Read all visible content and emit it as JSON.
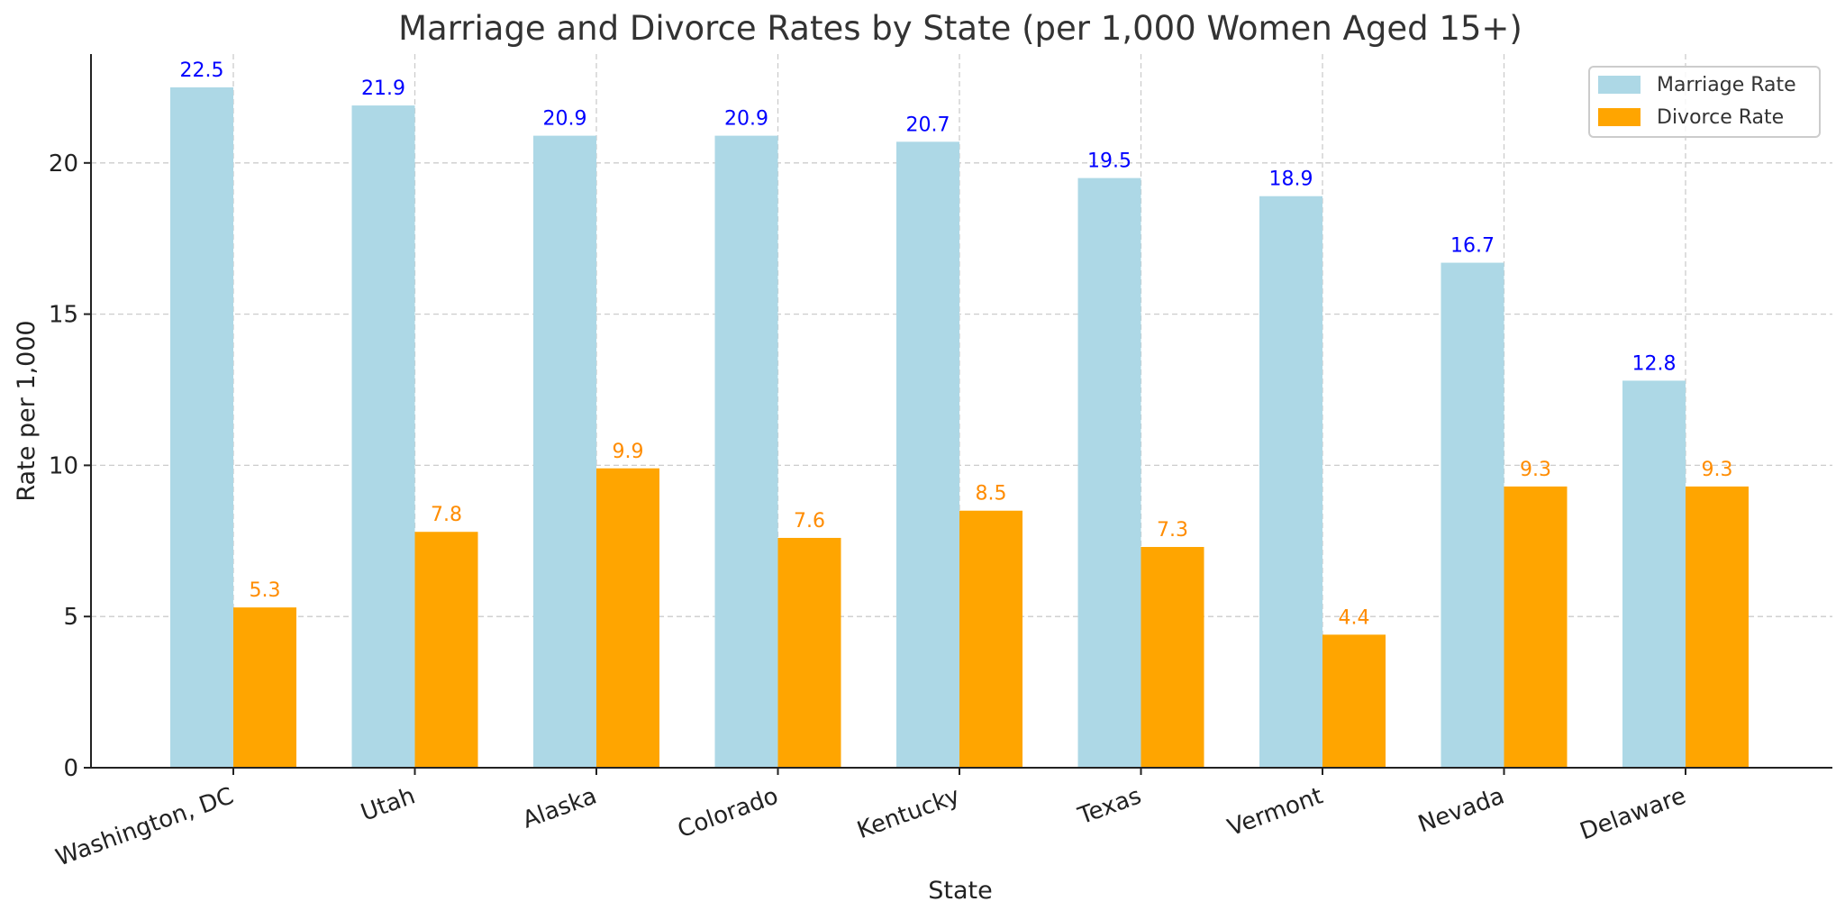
{
  "chart_data": {
    "type": "bar",
    "title": "Marriage and Divorce Rates by State (per 1,000 Women Aged 15+)",
    "xlabel": "State",
    "ylabel": "Rate per 1,000",
    "ylim": [
      0,
      23.6
    ],
    "yticks": [
      0,
      5,
      10,
      15,
      20
    ],
    "grid": true,
    "legend_position": "top-right",
    "categories": [
      "Washington, DC",
      "Utah",
      "Alaska",
      "Colorado",
      "Kentucky",
      "Texas",
      "Vermont",
      "Nevada",
      "Delaware"
    ],
    "series": [
      {
        "name": "Marriage Rate",
        "color": "#add8e6",
        "label_color": "#0000ff",
        "values": [
          22.5,
          21.9,
          20.9,
          20.9,
          20.7,
          19.5,
          18.9,
          16.7,
          12.8
        ]
      },
      {
        "name": "Divorce Rate",
        "color": "#ffa500",
        "label_color": "#ff8c00",
        "values": [
          5.3,
          7.8,
          9.9,
          7.6,
          8.5,
          7.3,
          4.4,
          9.3,
          9.3
        ]
      }
    ]
  }
}
